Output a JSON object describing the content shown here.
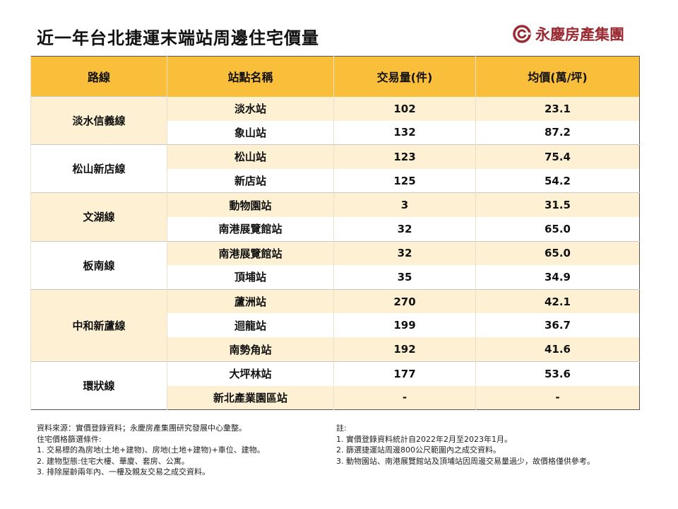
{
  "title": "近一年台北捷運末端站周邊住宅價量",
  "logo_text": "永慶房產集團",
  "colors": {
    "header": "#f9bf3b",
    "stripe": "#fdf0d3",
    "brand": "#9b2b32"
  },
  "headers": [
    "路線",
    "站點名稱",
    "交易量(件)",
    "均價(萬/坪)"
  ],
  "groups": [
    {
      "line": "淡水信義線",
      "rows": [
        [
          "淡水站",
          "102",
          "23.1"
        ],
        [
          "象山站",
          "132",
          "87.2"
        ]
      ]
    },
    {
      "line": "松山新店線",
      "rows": [
        [
          "松山站",
          "123",
          "75.4"
        ],
        [
          "新店站",
          "125",
          "54.2"
        ]
      ]
    },
    {
      "line": "文湖線",
      "rows": [
        [
          "動物園站",
          "3",
          "31.5"
        ],
        [
          "南港展覽館站",
          "32",
          "65.0"
        ]
      ]
    },
    {
      "line": "板南線",
      "rows": [
        [
          "南港展覽館站",
          "32",
          "65.0"
        ],
        [
          "頂埔站",
          "35",
          "34.9"
        ]
      ]
    },
    {
      "line": "中和新蘆線",
      "rows": [
        [
          "蘆洲站",
          "270",
          "42.1"
        ],
        [
          "迴龍站",
          "199",
          "36.7"
        ],
        [
          "南勢角站",
          "192",
          "41.6"
        ]
      ]
    },
    {
      "line": "環狀線",
      "rows": [
        [
          "大坪林站",
          "177",
          "53.6"
        ],
        [
          "新北產業園區站",
          "-",
          "-"
        ]
      ]
    }
  ],
  "notes_left": [
    "資料來源：實價登錄資料；永慶房產集團研究發展中心彙整。",
    "住宅價格篩選條件:",
    "1. 交易標的為房地(土地+建物)、房地(土地+建物)+車位、建物。",
    "2. 建物型態:住宅大樓、華廈、套房、公寓。",
    "3. 排除屋齡兩年內、一樓及親友交易之成交資料。"
  ],
  "notes_right": [
    "註:",
    "1. 實價登錄資料統計自2022年2月至2023年1月。",
    "2. 篩選捷運站周邊800公尺範圍內之成交資料。",
    "3. 動物園站、南港展覽館站及頂埔站因周邊交易量過少，故價格僅供參考。"
  ]
}
